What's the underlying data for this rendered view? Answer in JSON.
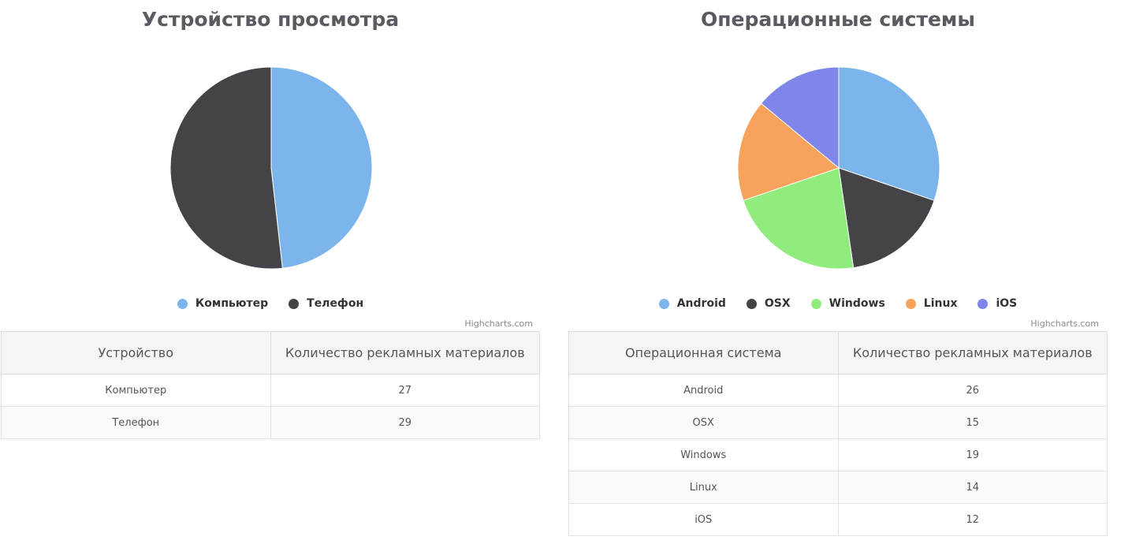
{
  "chart_data": [
    {
      "type": "pie",
      "title": "Устройство просмотра",
      "categories": [
        "Компьютер",
        "Телефон"
      ],
      "values": [
        27,
        29
      ],
      "colors": [
        "#7cb5ec",
        "#434348"
      ],
      "legend": "bottom-center"
    },
    {
      "type": "pie",
      "title": "Операционные системы",
      "categories": [
        "Android",
        "OSX",
        "Windows",
        "Linux",
        "iOS"
      ],
      "values": [
        26,
        15,
        19,
        14,
        12
      ],
      "colors": [
        "#7cb5ec",
        "#434348",
        "#90ed7d",
        "#f7a35c",
        "#8085e9"
      ],
      "legend": "bottom-center"
    }
  ],
  "credits": "Highcharts.com",
  "tables": [
    {
      "headers": [
        "Устройство",
        "Количество рекламных материалов"
      ],
      "rows": [
        [
          "Компьютер",
          "27"
        ],
        [
          "Телефон",
          "29"
        ]
      ]
    },
    {
      "headers": [
        "Операционная система",
        "Количество рекламных материалов"
      ],
      "rows": [
        [
          "Android",
          "26"
        ],
        [
          "OSX",
          "15"
        ],
        [
          "Windows",
          "19"
        ],
        [
          "Linux",
          "14"
        ],
        [
          "iOS",
          "12"
        ]
      ]
    }
  ]
}
